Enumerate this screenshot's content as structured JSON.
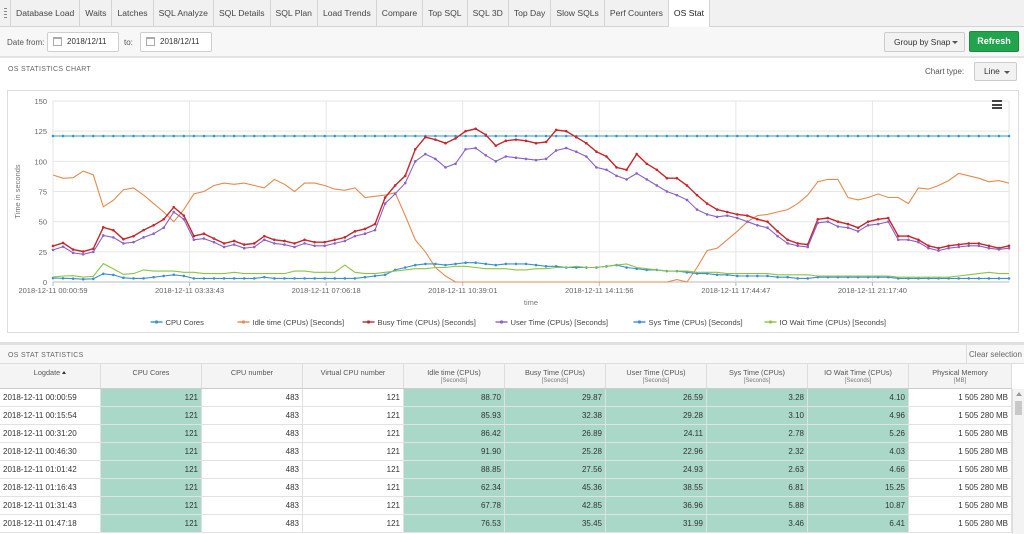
{
  "tabs": [
    "Database Load",
    "Waits",
    "Latches",
    "SQL Analyze",
    "SQL Details",
    "SQL Plan",
    "Load Trends",
    "Compare",
    "Top SQL",
    "SQL 3D",
    "Top Day",
    "Slow SQLs",
    "Perf Counters",
    "OS Stat"
  ],
  "active_tab": "OS Stat",
  "filter": {
    "date_from_label": "Date from:",
    "date_from": "2018/12/11",
    "to_label": "to:",
    "date_to": "2018/12/11",
    "group_by": "Group by Snap",
    "refresh": "Refresh"
  },
  "chart_section": {
    "title": "OS STATISTICS CHART",
    "chart_type_label": "Chart type:",
    "chart_type": "Line"
  },
  "chart_data": {
    "type": "line",
    "ylabel": "Time in seconds",
    "xlabel": "time",
    "ylim": [
      0,
      150
    ],
    "yticks": [
      0,
      25,
      50,
      75,
      100,
      125,
      150
    ],
    "xtick_labels": [
      "2018-12-11 00:00:59",
      "2018-12-11 03:33:43",
      "2018-12-11 07:06:18",
      "2018-12-11 10:39:01",
      "2018-12-11 14:11:56",
      "2018-12-11 17:44:47",
      "2018-12-11 21:17:40"
    ],
    "grid": true,
    "legend_position": "bottom",
    "series": [
      {
        "name": "CPU Cores",
        "color": "#2f97d1",
        "marker": true,
        "values": [
          121,
          121,
          121,
          121,
          121,
          121,
          121,
          121,
          121,
          121,
          121,
          121,
          121,
          121,
          121,
          121,
          121,
          121,
          121,
          121,
          121,
          121,
          121,
          121,
          121,
          121,
          121,
          121,
          121,
          121,
          121,
          121,
          121,
          121,
          121,
          121,
          121,
          121,
          121,
          121,
          121,
          121,
          121,
          121,
          121,
          121,
          121,
          121,
          121,
          121,
          121,
          121,
          121,
          121,
          121,
          121,
          121,
          121,
          121,
          121,
          121,
          121,
          121,
          121,
          121,
          121,
          121,
          121,
          121,
          121,
          121,
          121,
          121,
          121,
          121,
          121,
          121,
          121,
          121,
          121,
          121,
          121,
          121,
          121,
          121,
          121,
          121,
          121,
          121,
          121,
          121,
          121,
          121,
          121,
          121,
          121
        ]
      },
      {
        "name": "Idle time (CPUs) [Seconds]",
        "color": "#e8894b",
        "marker": false,
        "values": [
          88.7,
          85.93,
          86.42,
          91.9,
          88.85,
          62.34,
          67.78,
          76.53,
          78,
          72,
          65,
          58,
          50,
          60,
          73,
          75,
          80,
          82,
          81,
          82,
          80,
          78,
          85,
          81,
          75,
          82,
          82,
          80,
          77,
          76,
          78,
          70,
          71,
          72,
          74,
          55,
          35,
          25,
          12,
          5,
          0,
          0,
          0,
          0,
          0,
          0,
          0,
          0,
          0,
          0,
          0,
          0,
          0,
          0,
          0,
          0,
          0,
          0,
          0,
          0,
          0,
          0,
          2,
          0,
          12,
          26,
          28,
          35,
          42,
          50,
          55,
          56,
          58,
          60,
          65,
          72,
          83,
          85,
          85,
          70,
          68,
          70,
          73,
          70,
          70,
          65,
          78,
          77,
          80,
          84,
          90,
          88,
          86,
          83,
          84,
          82
        ]
      },
      {
        "name": "Busy Time (CPUs) [Seconds]",
        "color": "#c9252b",
        "marker": true,
        "values": [
          29.87,
          32.38,
          26.89,
          25.28,
          27.56,
          45.36,
          42.85,
          35.45,
          38,
          43,
          47,
          52,
          62,
          55,
          38,
          40,
          36,
          32,
          34,
          31,
          32,
          38,
          35,
          34,
          32,
          35,
          33,
          33,
          35,
          37,
          42,
          44,
          48,
          70,
          80,
          88,
          110,
          120,
          118,
          115,
          119,
          125,
          127,
          122,
          113,
          117,
          118,
          117,
          115,
          116,
          126,
          125,
          120,
          115,
          108,
          104,
          95,
          93,
          106,
          98,
          93,
          86,
          86,
          80,
          72,
          65,
          60,
          58,
          56,
          55,
          52,
          50,
          42,
          35,
          32,
          31,
          52,
          53,
          50,
          48,
          45,
          50,
          52,
          53,
          38,
          38,
          35,
          30,
          28,
          30,
          31,
          32,
          32,
          30,
          28,
          30
        ]
      },
      {
        "name": "User Time (CPUs) [Seconds]",
        "color": "#8a60c9",
        "marker": true,
        "values": [
          26.59,
          29.28,
          24.11,
          22.96,
          24.93,
          38.55,
          36.96,
          31.99,
          33,
          37,
          40,
          45,
          58,
          52,
          35,
          36,
          33,
          29,
          31,
          28,
          29,
          35,
          32,
          31,
          29,
          32,
          30,
          30,
          32,
          34,
          38,
          40,
          43,
          65,
          73,
          82,
          100,
          106,
          102,
          95,
          98,
          110,
          111,
          105,
          100,
          104,
          103,
          102,
          101,
          102,
          109,
          111,
          108,
          104,
          95,
          93,
          88,
          85,
          90,
          85,
          80,
          75,
          72,
          68,
          60,
          56,
          54,
          55,
          53,
          50,
          47,
          45,
          38,
          32,
          30,
          29,
          49,
          50,
          46,
          45,
          42,
          47,
          48,
          50,
          35,
          35,
          33,
          28,
          26,
          28,
          29,
          30,
          30,
          28,
          27,
          28
        ]
      },
      {
        "name": "Sys Time (CPUs) [Seconds]",
        "color": "#3b8fd8",
        "marker": true,
        "values": [
          3.28,
          3.1,
          2.78,
          2.32,
          2.63,
          6.81,
          5.88,
          3.46,
          3,
          3,
          4,
          5,
          6,
          5,
          3,
          3,
          3,
          3,
          3,
          3,
          3,
          4,
          3,
          3,
          3,
          3,
          3,
          3,
          3,
          3,
          3,
          4,
          5,
          6,
          10,
          12,
          14,
          15,
          15,
          14,
          15,
          16,
          16,
          15,
          14,
          15,
          15,
          15,
          14,
          13,
          13,
          12,
          12,
          12,
          12,
          13,
          14,
          12,
          11,
          10,
          10,
          9,
          9,
          8,
          7,
          7,
          6,
          6,
          5,
          5,
          5,
          5,
          4,
          4,
          3,
          3,
          4,
          4,
          4,
          4,
          4,
          4,
          4,
          4,
          3,
          3,
          3,
          3,
          3,
          3,
          3,
          3,
          3,
          3,
          3,
          3
        ]
      },
      {
        "name": "IO Wait Time (CPUs) [Seconds]",
        "color": "#8cc63f",
        "marker": false,
        "values": [
          4.1,
          4.96,
          5.26,
          4.03,
          4.66,
          15.25,
          10.87,
          6.41,
          7,
          10,
          9,
          9,
          9,
          8,
          8,
          7,
          7,
          7,
          8,
          7,
          7,
          7,
          7,
          7,
          9,
          9,
          8,
          8,
          8,
          14,
          8,
          7,
          7,
          8,
          9,
          10,
          11,
          11,
          12,
          12,
          13,
          13,
          12,
          11,
          11,
          11,
          10,
          10,
          11,
          11,
          12,
          12,
          13,
          12,
          12,
          13,
          14,
          15,
          12,
          11,
          10,
          9,
          9,
          9,
          8,
          8,
          8,
          7,
          7,
          7,
          7,
          7,
          6,
          6,
          6,
          6,
          5,
          5,
          5,
          5,
          5,
          5,
          5,
          5,
          4,
          4,
          4,
          4,
          4,
          4,
          5,
          6,
          7,
          8,
          7,
          7
        ]
      }
    ]
  },
  "table_section": {
    "title": "OS STAT STATISTICS",
    "clear_selection": "Clear selection"
  },
  "table": {
    "columns": [
      {
        "label": "Logdate",
        "unit": ""
      },
      {
        "label": "CPU Cores",
        "unit": ""
      },
      {
        "label": "CPU number",
        "unit": ""
      },
      {
        "label": "Virtual CPU number",
        "unit": ""
      },
      {
        "label": "Idle time (CPUs)",
        "unit": "[Seconds]"
      },
      {
        "label": "Busy Time (CPUs)",
        "unit": "[Seconds]"
      },
      {
        "label": "User Time (CPUs)",
        "unit": "[Seconds]"
      },
      {
        "label": "Sys Time (CPUs)",
        "unit": "[Seconds]"
      },
      {
        "label": "IO Wait Time (CPUs)",
        "unit": "[Seconds]"
      },
      {
        "label": "Physical Memory",
        "unit": "[MB]"
      }
    ],
    "rows": [
      [
        "2018-12-11 00:00:59",
        "121",
        "483",
        "121",
        "88.70",
        "29.87",
        "26.59",
        "3.28",
        "4.10",
        "1 505 280 MB"
      ],
      [
        "2018-12-11 00:15:54",
        "121",
        "483",
        "121",
        "85.93",
        "32.38",
        "29.28",
        "3.10",
        "4.96",
        "1 505 280 MB"
      ],
      [
        "2018-12-11 00:31:20",
        "121",
        "483",
        "121",
        "86.42",
        "26.89",
        "24.11",
        "2.78",
        "5.26",
        "1 505 280 MB"
      ],
      [
        "2018-12-11 00:46:30",
        "121",
        "483",
        "121",
        "91.90",
        "25.28",
        "22.96",
        "2.32",
        "4.03",
        "1 505 280 MB"
      ],
      [
        "2018-12-11 01:01:42",
        "121",
        "483",
        "121",
        "88.85",
        "27.56",
        "24.93",
        "2.63",
        "4.66",
        "1 505 280 MB"
      ],
      [
        "2018-12-11 01:16:43",
        "121",
        "483",
        "121",
        "62.34",
        "45.36",
        "38.55",
        "6.81",
        "15.25",
        "1 505 280 MB"
      ],
      [
        "2018-12-11 01:31:43",
        "121",
        "483",
        "121",
        "67.78",
        "42.85",
        "36.96",
        "5.88",
        "10.87",
        "1 505 280 MB"
      ],
      [
        "2018-12-11 01:47:18",
        "121",
        "483",
        "121",
        "76.53",
        "35.45",
        "31.99",
        "3.46",
        "6.41",
        "1 505 280 MB"
      ]
    ]
  }
}
